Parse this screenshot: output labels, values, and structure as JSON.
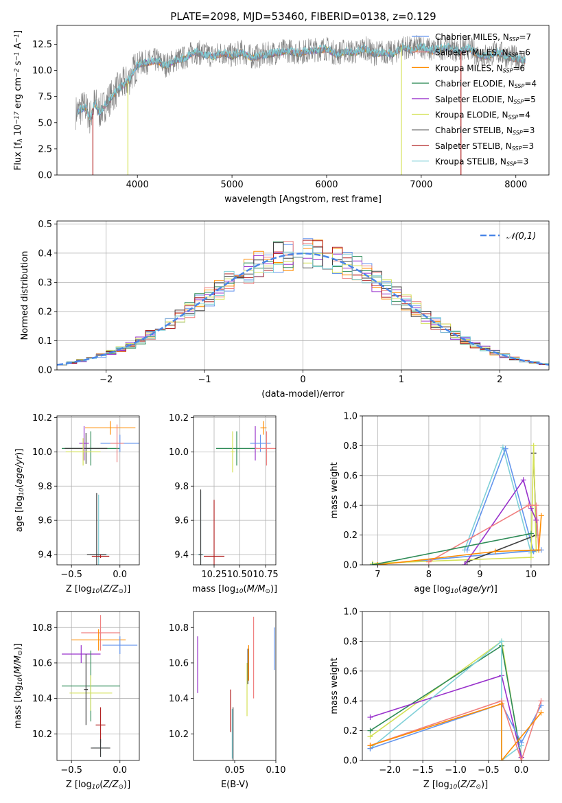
{
  "figure": {
    "title": "PLATE=2098, MJD=53460, FIBERID=0138, z=0.129"
  },
  "chart_data": [
    {
      "type": "line",
      "id": "spectrum",
      "title": "PLATE=2098, MJD=53460, FIBERID=0138, z=0.129",
      "xlabel": "wavelength [Angstrom, rest frame]",
      "ylabel": "Flux [f$_\\lambda$ 10$^{-17}$ erg cm$^{-2}$ s$^{-1}$ A$^{-1}$]",
      "xlim": [
        3150,
        8350
      ],
      "ylim": [
        0,
        14.3
      ],
      "xticks": [
        4000,
        5000,
        6000,
        7000,
        8000
      ],
      "xtick_labels": [
        "4000",
        "5000",
        "6000",
        "7000",
        "8000"
      ],
      "yticks": [
        0,
        2.5,
        5,
        7.5,
        10,
        12.5
      ],
      "ytick_labels": [
        "0.0",
        "2.5",
        "5.0",
        "7.5",
        "10.0",
        "12.5"
      ],
      "data_spectrum": {
        "color": "#808080",
        "x": [
          3350,
          3450,
          3500,
          3550,
          3600,
          3700,
          3800,
          3900,
          4000,
          4100,
          4200,
          4300,
          4400,
          4500,
          4600,
          4700,
          4800,
          4900,
          5000,
          5100,
          5200,
          5300,
          5400,
          5500,
          5600,
          5700,
          5800,
          5900,
          6000,
          6100,
          6200,
          6300,
          6400,
          6500,
          6600,
          6700,
          6800,
          6900,
          7000,
          7100,
          7200,
          7300,
          7400,
          7500,
          7600,
          7700,
          7800,
          7900,
          8000,
          8100
        ],
        "y": [
          6.0,
          6.6,
          5.4,
          7.0,
          6.0,
          7.2,
          8.3,
          9.0,
          10.6,
          10.8,
          11.0,
          10.5,
          11.0,
          11.2,
          11.8,
          11.6,
          11.4,
          11.7,
          11.4,
          11.8,
          11.3,
          11.4,
          11.6,
          11.8,
          11.9,
          11.7,
          11.9,
          12.0,
          12.1,
          11.6,
          11.9,
          11.7,
          12.2,
          11.6,
          11.8,
          11.6,
          12.3,
          12.0,
          12.4,
          11.9,
          12.1,
          12.3,
          11.8,
          12.2,
          11.5,
          11.4,
          11.8,
          11.4,
          11.2,
          11.0
        ]
      },
      "series": [
        {
          "name": "Chabrier MILES, N$_{SSP}$=7",
          "color": "#6495ed"
        },
        {
          "name": "Salpeter MILES, N$_{SSP}$=6",
          "color": "#f08080"
        },
        {
          "name": "Kroupa MILES, N$_{SSP}$=6",
          "color": "#ff8c00"
        },
        {
          "name": "Chabrier ELODIE, N$_{SSP}$=4",
          "color": "#2e8b57"
        },
        {
          "name": "Salpeter ELODIE, N$_{SSP}$=5",
          "color": "#9932cc"
        },
        {
          "name": "Kroupa ELODIE, N$_{SSP}$=4",
          "color": "#d4e157"
        },
        {
          "name": "Chabrier STELIB, N$_{SSP}$=3",
          "color": "#404040"
        },
        {
          "name": "Salpeter STELIB, N$_{SSP}$=3",
          "color": "#b22222"
        },
        {
          "name": "Kroupa STELIB, N$_{SSP}$=3",
          "color": "#80d0d8"
        }
      ],
      "legend_position": "right"
    },
    {
      "type": "step",
      "id": "residuals",
      "xlabel": "(data-model)/error",
      "ylabel": "Normed distribution",
      "xlim": [
        -2.5,
        2.5
      ],
      "ylim": [
        0,
        0.51
      ],
      "xticks": [
        -2,
        -1,
        0,
        1,
        2
      ],
      "xtick_labels": [
        "−2",
        "−1",
        "0",
        "1",
        "2"
      ],
      "yticks": [
        0,
        0.1,
        0.2,
        0.3,
        0.4,
        0.5
      ],
      "ytick_labels": [
        "0.0",
        "0.1",
        "0.2",
        "0.3",
        "0.4",
        "0.5"
      ],
      "grid": true,
      "bin_width": 0.1,
      "normal_curve": {
        "label": "$\\mathcal{N}(0,1)$",
        "color": "#4a86e8",
        "style": "dashed"
      },
      "series": [
        {
          "color": "#6495ed"
        },
        {
          "color": "#f08080"
        },
        {
          "color": "#ff8c00"
        },
        {
          "color": "#2e8b57"
        },
        {
          "color": "#9932cc"
        },
        {
          "color": "#d4e157"
        },
        {
          "color": "#404040"
        },
        {
          "color": "#b22222"
        },
        {
          "color": "#80d0d8"
        }
      ],
      "legend_position": "top-right"
    },
    {
      "type": "errorbar",
      "id": "age-vs-Z",
      "xlabel": "Z [log$_{10}$($Z/Z_\\odot$)]",
      "ylabel": "age  [log$_{10}$($age/yr$)]",
      "xlim": [
        -0.65,
        0.2
      ],
      "ylim": [
        9.34,
        10.21
      ],
      "xticks": [
        -0.5,
        0.0
      ],
      "xtick_labels": [
        "−0.5",
        "0.0"
      ],
      "yticks": [
        9.4,
        9.6,
        9.8,
        10.0,
        10.2
      ],
      "ytick_labels": [
        "9.4",
        "9.6",
        "9.8",
        "10.0",
        "10.2"
      ],
      "grid": true,
      "points": [
        {
          "color": "#ff8c00",
          "x": -0.1,
          "y": 10.14,
          "xerr": 0.26,
          "yerr": 0.04
        },
        {
          "color": "#2e8b57",
          "x": -0.3,
          "y": 10.02,
          "xerr": 0.3,
          "yerr": 0.1
        },
        {
          "color": "#404040",
          "x": -0.35,
          "y": 10.02,
          "xerr": 0.22,
          "yerr": 0.09
        },
        {
          "color": "#9932cc",
          "x": -0.37,
          "y": 10.05,
          "xerr": 0.05,
          "yerr": 0.1
        },
        {
          "color": "#d4e157",
          "x": -0.38,
          "y": 10.0,
          "xerr": 0.18,
          "yerr": 0.08
        },
        {
          "color": "#6495ed",
          "x": 0.0,
          "y": 10.05,
          "xerr": 0.2,
          "yerr": 0.05
        },
        {
          "color": "#f08080",
          "x": -0.03,
          "y": 10.05,
          "xerr": 0.07,
          "yerr": 0.11
        },
        {
          "color": "#80d0d8",
          "x": -0.22,
          "y": 9.4,
          "xerr": 0.09,
          "yerr": 0.35
        },
        {
          "color": "#404040",
          "x": -0.24,
          "y": 9.4,
          "xerr": 0.1,
          "yerr": 0.36
        },
        {
          "color": "#b22222",
          "x": -0.2,
          "y": 9.39,
          "xerr": 0.09,
          "yerr": 0.01
        }
      ]
    },
    {
      "type": "errorbar",
      "id": "age-vs-mass",
      "xlabel": "mass [log$_{10}$($M/M_\\odot$)]",
      "xlim": [
        10.05,
        10.85
      ],
      "ylim": [
        9.34,
        10.21
      ],
      "xticks": [
        10.25,
        10.5,
        10.75
      ],
      "xtick_labels": [
        "10.25",
        "10.50",
        "10.75"
      ],
      "yticks": [
        9.4,
        9.6,
        9.8,
        10.0,
        10.2
      ],
      "ytick_labels": [
        "9.4",
        "9.6",
        "9.8",
        "10.0",
        "10.2"
      ],
      "grid": true,
      "points": [
        {
          "color": "#ff8c00",
          "x": 10.73,
          "y": 10.14,
          "xerr": 0.03,
          "yerr": 0.04
        },
        {
          "color": "#2e8b57",
          "x": 10.47,
          "y": 10.02,
          "xerr": 0.2,
          "yerr": 0.1
        },
        {
          "color": "#9932cc",
          "x": 10.65,
          "y": 10.05,
          "xerr": 0.01,
          "yerr": 0.1
        },
        {
          "color": "#d4e157",
          "x": 10.43,
          "y": 10.0,
          "xerr": 0.02,
          "yerr": 0.12
        },
        {
          "color": "#6495ed",
          "x": 10.7,
          "y": 10.05,
          "xerr": 0.1,
          "yerr": 0.05
        },
        {
          "color": "#f08080",
          "x": 10.76,
          "y": 10.02,
          "xerr": 0.11,
          "yerr": 0.1
        },
        {
          "color": "#80d0d8",
          "x": 10.12,
          "y": 9.4,
          "xerr": 0.03,
          "yerr": 0.37
        },
        {
          "color": "#404040",
          "x": 10.12,
          "y": 9.4,
          "xerr": 0.02,
          "yerr": 0.38
        },
        {
          "color": "#b22222",
          "x": 10.25,
          "y": 9.39,
          "xerr": 0.1,
          "yerr": 0.33
        }
      ]
    },
    {
      "type": "line",
      "id": "massweight-vs-age",
      "xlabel": "age  [log$_{10}$($age/yr$)]",
      "ylabel": "mass weight",
      "xlim": [
        6.7,
        10.35
      ],
      "ylim": [
        0,
        1.0
      ],
      "xticks": [
        7,
        8,
        9,
        10
      ],
      "xtick_labels": [
        "7",
        "8",
        "9",
        "10"
      ],
      "yticks": [
        0,
        0.2,
        0.4,
        0.6,
        0.8,
        1.0
      ],
      "ytick_labels": [
        "0.0",
        "0.2",
        "0.4",
        "0.6",
        "0.8",
        "1.0"
      ],
      "grid": true,
      "series": [
        {
          "color": "#80d0d8",
          "x": [
            8.7,
            9.45,
            10.0,
            10.15,
            6.9
          ],
          "y": [
            0.1,
            0.79,
            0.08,
            0.1,
            0.0
          ]
        },
        {
          "color": "#6495ed",
          "x": [
            8.75,
            9.5,
            10.05,
            10.2,
            6.9
          ],
          "y": [
            0.1,
            0.78,
            0.09,
            0.1,
            0.0
          ]
        },
        {
          "color": "#404040",
          "x": [
            10.05,
            10.1,
            8.75
          ],
          "y": [
            0.75,
            0.2,
            0.02
          ]
        },
        {
          "color": "#d4e157",
          "x": [
            6.9,
            10.0,
            10.05,
            10.1
          ],
          "y": [
            0.01,
            0.05,
            0.8,
            0.1
          ]
        },
        {
          "color": "#9932cc",
          "x": [
            8.7,
            9.85,
            10.0,
            10.1
          ],
          "y": [
            0.0,
            0.57,
            0.38,
            0.3
          ]
        },
        {
          "color": "#f08080",
          "x": [
            8.0,
            9.95,
            10.1,
            10.15
          ],
          "y": [
            0.02,
            0.4,
            0.4,
            0.1
          ]
        },
        {
          "color": "#ff8c00",
          "x": [
            7.0,
            9.3,
            10.15,
            10.2
          ],
          "y": [
            0.0,
            0.09,
            0.1,
            0.33
          ]
        },
        {
          "color": "#2e8b57",
          "x": [
            6.9,
            10.0
          ],
          "y": [
            0.0,
            0.21
          ]
        }
      ]
    },
    {
      "type": "errorbar",
      "id": "mass-vs-Z",
      "xlabel": "Z [log$_{10}$($Z/Z_\\odot$)]",
      "ylabel": "mass [log$_{10}$($M/M_\\odot$)]",
      "xlim": [
        -0.65,
        0.2
      ],
      "ylim": [
        10.05,
        10.89
      ],
      "xticks": [
        -0.5,
        0.0
      ],
      "xtick_labels": [
        "−0.5",
        "0.0"
      ],
      "yticks": [
        10.2,
        10.4,
        10.6,
        10.8
      ],
      "ytick_labels": [
        "10.2",
        "10.4",
        "10.6",
        "10.8"
      ],
      "grid": true,
      "points": [
        {
          "color": "#f08080",
          "x": -0.2,
          "y": 10.77,
          "xerr": 0.2,
          "yerr": 0.1
        },
        {
          "color": "#ff8c00",
          "x": -0.22,
          "y": 10.73,
          "xerr": 0.28,
          "yerr": 0.06
        },
        {
          "color": "#6495ed",
          "x": 0.0,
          "y": 10.7,
          "xerr": 0.18,
          "yerr": 0.05
        },
        {
          "color": "#9932cc",
          "x": -0.4,
          "y": 10.65,
          "xerr": 0.2,
          "yerr": 0.05
        },
        {
          "color": "#2e8b57",
          "x": -0.3,
          "y": 10.47,
          "xerr": 0.3,
          "yerr": 0.2
        },
        {
          "color": "#d4e157",
          "x": -0.3,
          "y": 10.43,
          "xerr": 0.22,
          "yerr": 0.1
        },
        {
          "color": "#404040",
          "x": -0.35,
          "y": 10.45,
          "xerr": 0.02,
          "yerr": 0.2
        },
        {
          "color": "#b22222",
          "x": -0.2,
          "y": 10.25,
          "xerr": 0.05,
          "yerr": 0.1
        },
        {
          "color": "#80d0d8",
          "x": -0.2,
          "y": 10.12,
          "xerr": 0.08,
          "yerr": 0.05
        },
        {
          "color": "#404040",
          "x": -0.2,
          "y": 10.12,
          "xerr": 0.1,
          "yerr": 0.05
        }
      ]
    },
    {
      "type": "errorbar",
      "id": "mass-vs-ebv",
      "xlabel": "E(B-V)",
      "xlim": [
        0.0,
        0.1
      ],
      "ylim": [
        10.05,
        10.89
      ],
      "xticks": [
        0.05,
        0.1
      ],
      "xtick_labels": [
        "0.05",
        "0.10"
      ],
      "yticks": [
        10.2,
        10.4,
        10.6,
        10.8
      ],
      "ytick_labels": [
        "10.2",
        "10.4",
        "10.6",
        "10.8"
      ],
      "grid": false,
      "points": [
        {
          "color": "#9932cc",
          "x": 0.005,
          "y": 10.59,
          "yerr": 0.16
        },
        {
          "color": "#b22222",
          "x": 0.045,
          "y": 10.33,
          "yerr": 0.12
        },
        {
          "color": "#404040",
          "x": 0.048,
          "y": 10.2,
          "yerr": 0.15
        },
        {
          "color": "#80d0d8",
          "x": 0.047,
          "y": 10.2,
          "yerr": 0.14
        },
        {
          "color": "#d4e157",
          "x": 0.065,
          "y": 10.45,
          "yerr": 0.15
        },
        {
          "color": "#404040",
          "x": 0.066,
          "y": 10.58,
          "yerr": 0.1
        },
        {
          "color": "#ff8c00",
          "x": 0.067,
          "y": 10.6,
          "yerr": 0.1
        },
        {
          "color": "#f08080",
          "x": 0.073,
          "y": 10.63,
          "yerr": 0.23
        },
        {
          "color": "#6495ed",
          "x": 0.098,
          "y": 10.68,
          "yerr": 0.12
        }
      ]
    },
    {
      "type": "line",
      "id": "massweight-vs-Z",
      "xlabel": "Z [log$_{10}$($Z/Z_\\odot$)]",
      "ylabel": "mass weight",
      "xlim": [
        -2.42,
        0.42
      ],
      "ylim": [
        0,
        1.0
      ],
      "xticks": [
        -2.0,
        -1.5,
        -1.0,
        -0.5,
        0.0
      ],
      "xtick_labels": [
        "−2.0",
        "−1.5",
        "−1.0",
        "−0.5",
        "0.0"
      ],
      "yticks": [
        0,
        0.2,
        0.4,
        0.6,
        0.8,
        1.0
      ],
      "ytick_labels": [
        "0.0",
        "0.2",
        "0.4",
        "0.6",
        "0.8",
        "1.0"
      ],
      "grid": true,
      "series": [
        {
          "color": "#d4e157",
          "x": [
            -2.3,
            -0.3,
            0.0
          ],
          "y": [
            0.16,
            0.8,
            0.0
          ]
        },
        {
          "color": "#2e8b57",
          "x": [
            -2.3,
            -0.3,
            0.0
          ],
          "y": [
            0.2,
            0.77,
            0.02
          ]
        },
        {
          "color": "#9932cc",
          "x": [
            -2.3,
            -0.3,
            0.0
          ],
          "y": [
            0.29,
            0.57,
            0.02
          ]
        },
        {
          "color": "#80d0d8",
          "x": [
            -2.3,
            -0.3,
            -0.3,
            0.0
          ],
          "y": [
            0.08,
            0.8,
            0.0,
            0.1
          ]
        },
        {
          "color": "#6495ed",
          "x": [
            -2.3,
            -0.3,
            0.0,
            0.3
          ],
          "y": [
            0.08,
            0.38,
            0.12,
            0.37
          ]
        },
        {
          "color": "#f08080",
          "x": [
            -2.3,
            -0.3,
            0.0,
            0.3
          ],
          "y": [
            0.1,
            0.4,
            0.0,
            0.4
          ]
        },
        {
          "color": "#ff8c00",
          "x": [
            -2.3,
            -0.3,
            -0.3,
            0.3
          ],
          "y": [
            0.1,
            0.38,
            0.0,
            0.32
          ]
        }
      ]
    }
  ]
}
